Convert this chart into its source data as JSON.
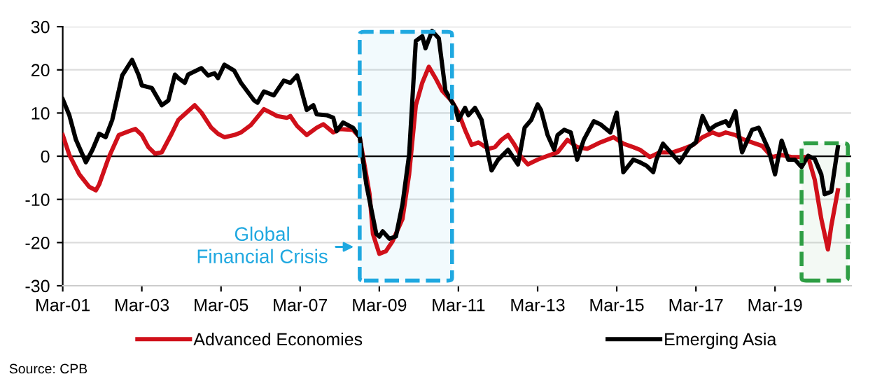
{
  "chart_data": {
    "type": "line",
    "series": [
      {
        "name": "Advanced Economies",
        "color": "#d0101a",
        "x": [
          "2001-03",
          "2001-05",
          "2001-08",
          "2001-11",
          "2002-01",
          "2002-02",
          "2002-05",
          "2002-08",
          "2002-11",
          "2003-01",
          "2003-03",
          "2003-05",
          "2003-07",
          "2003-09",
          "2003-12",
          "2004-02",
          "2004-07",
          "2004-09",
          "2004-12",
          "2005-02",
          "2005-04",
          "2005-07",
          "2005-09",
          "2005-12",
          "2006-04",
          "2006-06",
          "2006-08",
          "2006-11",
          "2006-12",
          "2007-02",
          "2007-05",
          "2007-08",
          "2007-10",
          "2008-01",
          "2008-03",
          "2008-07",
          "2008-09",
          "2008-12",
          "2009-01",
          "2009-03",
          "2009-05",
          "2009-07",
          "2009-10",
          "2009-12",
          "2010-02",
          "2010-04",
          "2010-06",
          "2010-08",
          "2010-10",
          "2011-01",
          "2011-03",
          "2011-05",
          "2011-07",
          "2011-09",
          "2011-12",
          "2012-02",
          "2012-04",
          "2012-06",
          "2012-08",
          "2012-10",
          "2012-12",
          "2013-03",
          "2013-05",
          "2013-09",
          "2013-12",
          "2014-03",
          "2014-06",
          "2014-10",
          "2015-02",
          "2015-05",
          "2015-08",
          "2015-10",
          "2016-01",
          "2016-04",
          "2016-08",
          "2016-11",
          "2017-02",
          "2017-05",
          "2017-08",
          "2017-10",
          "2017-12",
          "2018-03",
          "2018-05",
          "2018-08",
          "2018-11",
          "2019-02",
          "2019-05",
          "2019-08",
          "2019-10",
          "2020-01",
          "2020-03",
          "2020-05",
          "2020-07",
          "2020-08",
          "2020-10"
        ],
        "values": [
          4.9,
          0.3,
          -4.2,
          -7.1,
          -7.9,
          -6.5,
          -0.2,
          4.9,
          5.8,
          6.3,
          4.9,
          2.1,
          0.6,
          0.9,
          5.2,
          8.4,
          11.8,
          10.1,
          6.6,
          5.2,
          4.4,
          4.9,
          5.5,
          7.2,
          10.9,
          10.1,
          9.3,
          8.9,
          9.3,
          7,
          4.9,
          6.6,
          7.4,
          5.5,
          6.3,
          6.1,
          4.4,
          -8.8,
          -18,
          -22.6,
          -22,
          -19.7,
          -14.5,
          -4.2,
          11.8,
          17,
          20.7,
          18.1,
          15.2,
          12.7,
          10.1,
          6.1,
          2.6,
          3.2,
          1.7,
          2.1,
          3.8,
          4.9,
          2.6,
          -0.2,
          -1.9,
          -0.8,
          -0.2,
          0.9,
          3.8,
          2.1,
          1.7,
          3.2,
          4.4,
          2.9,
          2.1,
          1.5,
          -0.2,
          0.9,
          0.9,
          1.7,
          2.6,
          4.4,
          5.5,
          4.9,
          5.5,
          4.9,
          4.0,
          3.2,
          2.4,
          -0.2,
          0.3,
          -0.2,
          -0.2,
          -0.2,
          -5.4,
          -14.5,
          -21.6,
          -16.2,
          -7.9
        ]
      },
      {
        "name": "Emerging Asia",
        "color": "#000000",
        "x": [
          "2001-03",
          "2001-05",
          "2001-07",
          "2001-10",
          "2001-12",
          "2002-02",
          "2002-04",
          "2002-06",
          "2002-09",
          "2002-12",
          "2003-02",
          "2003-03",
          "2003-06",
          "2003-09",
          "2003-11",
          "2004-01",
          "2004-02",
          "2004-04",
          "2004-05",
          "2004-09",
          "2004-11",
          "2005-01",
          "2005-02",
          "2005-04",
          "2005-07",
          "2005-09",
          "2006-01",
          "2006-02",
          "2006-04",
          "2006-07",
          "2006-10",
          "2006-12",
          "2007-02",
          "2007-03",
          "2007-05",
          "2007-07",
          "2007-08",
          "2007-11",
          "2008-01",
          "2008-02",
          "2008-04",
          "2008-07",
          "2008-09",
          "2008-11",
          "2009-02",
          "2009-03",
          "2009-04",
          "2009-06",
          "2009-08",
          "2009-10",
          "2009-12",
          "2010-02",
          "2010-04",
          "2010-05",
          "2010-07",
          "2010-09",
          "2010-11",
          "2011-02",
          "2011-03",
          "2011-05",
          "2011-06",
          "2011-08",
          "2011-10",
          "2011-12",
          "2012-01",
          "2012-03",
          "2012-06",
          "2012-09",
          "2012-11",
          "2013-01",
          "2013-03",
          "2013-04",
          "2013-06",
          "2013-08",
          "2013-09",
          "2013-11",
          "2014-01",
          "2014-03",
          "2014-05",
          "2014-08",
          "2014-10",
          "2015-01",
          "2015-03",
          "2015-04",
          "2015-05",
          "2015-08",
          "2015-10",
          "2015-12",
          "2016-02",
          "2016-03",
          "2016-05",
          "2016-08",
          "2016-10",
          "2017-01",
          "2017-03",
          "2017-05",
          "2017-07",
          "2017-09",
          "2017-12",
          "2018-01",
          "2018-03",
          "2018-04",
          "2018-05",
          "2018-08",
          "2018-10",
          "2019-01",
          "2019-03",
          "2019-04",
          "2019-05",
          "2019-07",
          "2019-09",
          "2019-11",
          "2020-01",
          "2020-03",
          "2020-05",
          "2020-06",
          "2020-08",
          "2020-10"
        ],
        "values": [
          13.2,
          9.5,
          3.8,
          -1.4,
          1.5,
          5.2,
          4.4,
          8.4,
          18.7,
          22.3,
          18.7,
          16.4,
          15.8,
          11.8,
          12.9,
          18.9,
          18.1,
          17,
          18.9,
          20.4,
          18.7,
          19.2,
          18.1,
          21.2,
          19.8,
          17,
          12.9,
          12.4,
          15,
          14.1,
          17.5,
          17,
          18.7,
          16.4,
          10.7,
          11.8,
          9.7,
          9.5,
          8.9,
          5.8,
          7.8,
          6.6,
          4.4,
          -6.5,
          -18,
          -18.6,
          -17.4,
          -19.1,
          -18.6,
          -11.1,
          0.3,
          26.7,
          27.8,
          25,
          29,
          27.3,
          15.2,
          11.2,
          8.4,
          11.2,
          9.5,
          11.2,
          8.4,
          0.3,
          -3.3,
          -0.8,
          1.5,
          -1.9,
          6.6,
          8.4,
          12,
          10.7,
          4.9,
          1.5,
          4.9,
          6.1,
          5.5,
          -0.8,
          3.8,
          8.1,
          7.4,
          5.5,
          10.1,
          3.8,
          -3.7,
          -0.8,
          -1.4,
          -2.2,
          -3.7,
          -0.8,
          2.9,
          0.3,
          -1.4,
          2.1,
          3.2,
          9.3,
          6.1,
          7.2,
          8.1,
          7,
          10.4,
          4.9,
          0.9,
          6.1,
          6.6,
          1.5,
          -4.2,
          -0.2,
          3.6,
          -0.8,
          -0.8,
          -2.5,
          0.1,
          -0.6,
          -4.2,
          -8.8,
          -8.2,
          2.1
        ]
      }
    ],
    "xlim": [
      "2001-03",
      "2021-02"
    ],
    "xticks": [
      {
        "value": "2001-03",
        "label": "Mar-01"
      },
      {
        "value": "2003-03",
        "label": "Mar-03"
      },
      {
        "value": "2005-03",
        "label": "Mar-05"
      },
      {
        "value": "2007-03",
        "label": "Mar-07"
      },
      {
        "value": "2009-03",
        "label": "Mar-09"
      },
      {
        "value": "2011-03",
        "label": "Mar-11"
      },
      {
        "value": "2013-03",
        "label": "Mar-13"
      },
      {
        "value": "2015-03",
        "label": "Mar-15"
      },
      {
        "value": "2017-03",
        "label": "Mar-17"
      },
      {
        "value": "2019-03",
        "label": "Mar-19"
      }
    ],
    "ylim": [
      -30,
      30
    ],
    "yticks": [
      -30,
      -20,
      -10,
      0,
      10,
      20,
      30
    ],
    "grid": "y",
    "legend": "bottom",
    "line_style": "solid",
    "ref_lines": [
      {
        "axis": "y",
        "value": 0,
        "color": "#000000"
      }
    ],
    "bands": [
      {
        "axis": "x",
        "from": "2008-09",
        "to": "2011-01",
        "color": "#1fa8e0"
      },
      {
        "axis": "x",
        "from": "2019-11",
        "to": "2021-01",
        "color": "#2e9e44"
      }
    ],
    "annotations": [
      "Global\nFinancial Crisis",
      "Source: CPB"
    ]
  }
}
